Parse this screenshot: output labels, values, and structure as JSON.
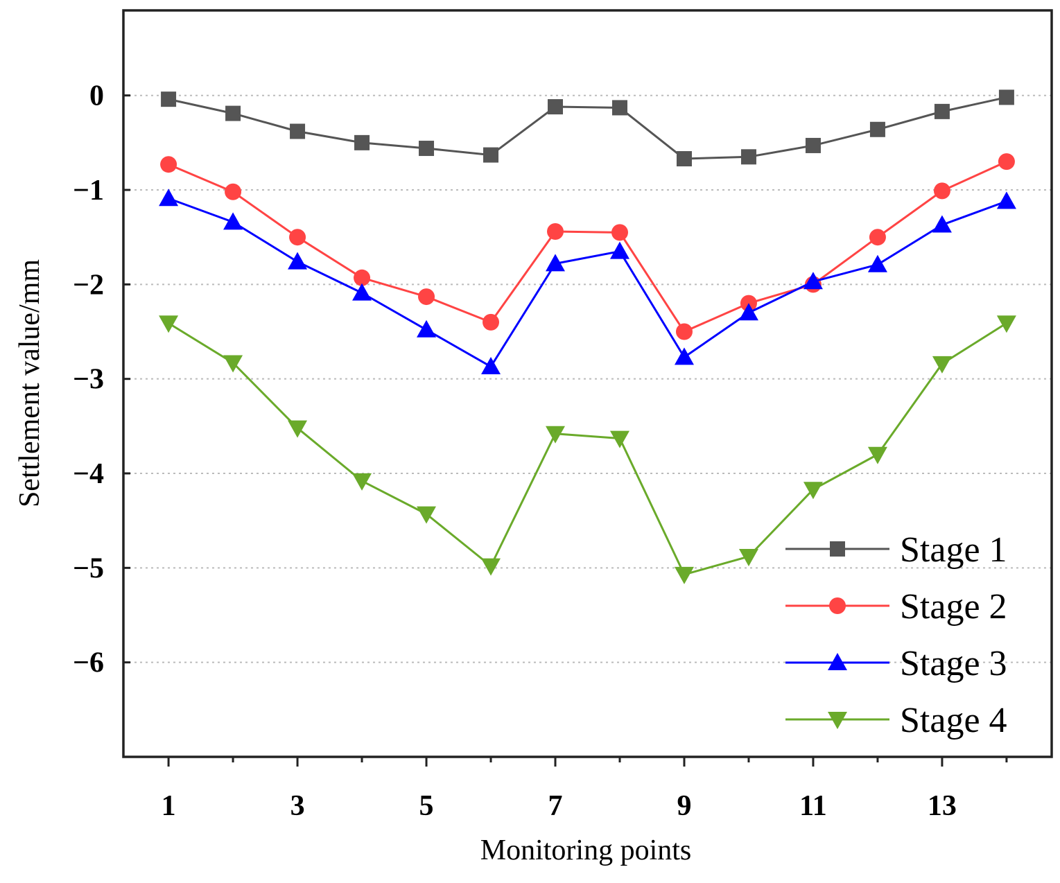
{
  "chart_data": {
    "type": "line",
    "title": "",
    "xlabel": "Monitoring points",
    "ylabel": "Settlement value/mm",
    "x": [
      1,
      2,
      3,
      4,
      5,
      6,
      7,
      8,
      9,
      10,
      11,
      12,
      13,
      14
    ],
    "xlim": [
      0.3,
      14.7
    ],
    "ylim": [
      -7,
      0.9
    ],
    "xticks": [
      1,
      2,
      3,
      4,
      5,
      6,
      7,
      8,
      9,
      10,
      11,
      12,
      13,
      14
    ],
    "xtick_labels": [
      "1",
      "",
      "3",
      "",
      "5",
      "",
      "7",
      "",
      "9",
      "",
      "11",
      "",
      "13",
      ""
    ],
    "yticks": [
      0,
      -1,
      -2,
      -3,
      -4,
      -5,
      -6
    ],
    "ytick_labels": [
      "0",
      "−1",
      "−2",
      "−3",
      "−4",
      "−5",
      "−6"
    ],
    "grid": "horizontal dotted",
    "legend_position": "bottom-right",
    "series": [
      {
        "name": "Stage 1",
        "color": "#555555",
        "marker": "square",
        "values": [
          -0.04,
          -0.19,
          -0.38,
          -0.5,
          -0.56,
          -0.63,
          -0.12,
          -0.13,
          -0.67,
          -0.65,
          -0.53,
          -0.36,
          -0.17,
          -0.02
        ]
      },
      {
        "name": "Stage 2",
        "color": "#ff4444",
        "marker": "circle",
        "values": [
          -0.73,
          -1.02,
          -1.5,
          -1.93,
          -2.13,
          -2.4,
          -1.44,
          -1.45,
          -2.5,
          -2.2,
          -2.0,
          -1.5,
          -1.01,
          -0.7
        ]
      },
      {
        "name": "Stage 3",
        "color": "#0000ff",
        "marker": "triangle-up",
        "values": [
          -1.09,
          -1.34,
          -1.76,
          -2.09,
          -2.48,
          -2.87,
          -1.78,
          -1.65,
          -2.77,
          -2.3,
          -1.97,
          -1.79,
          -1.37,
          -1.12
        ]
      },
      {
        "name": "Stage 4",
        "color": "#6aaa2a",
        "marker": "triangle-down",
        "values": [
          -2.41,
          -2.83,
          -3.52,
          -4.08,
          -4.43,
          -4.98,
          -3.58,
          -3.63,
          -5.07,
          -4.88,
          -4.17,
          -3.8,
          -2.84,
          -2.41
        ]
      }
    ]
  }
}
